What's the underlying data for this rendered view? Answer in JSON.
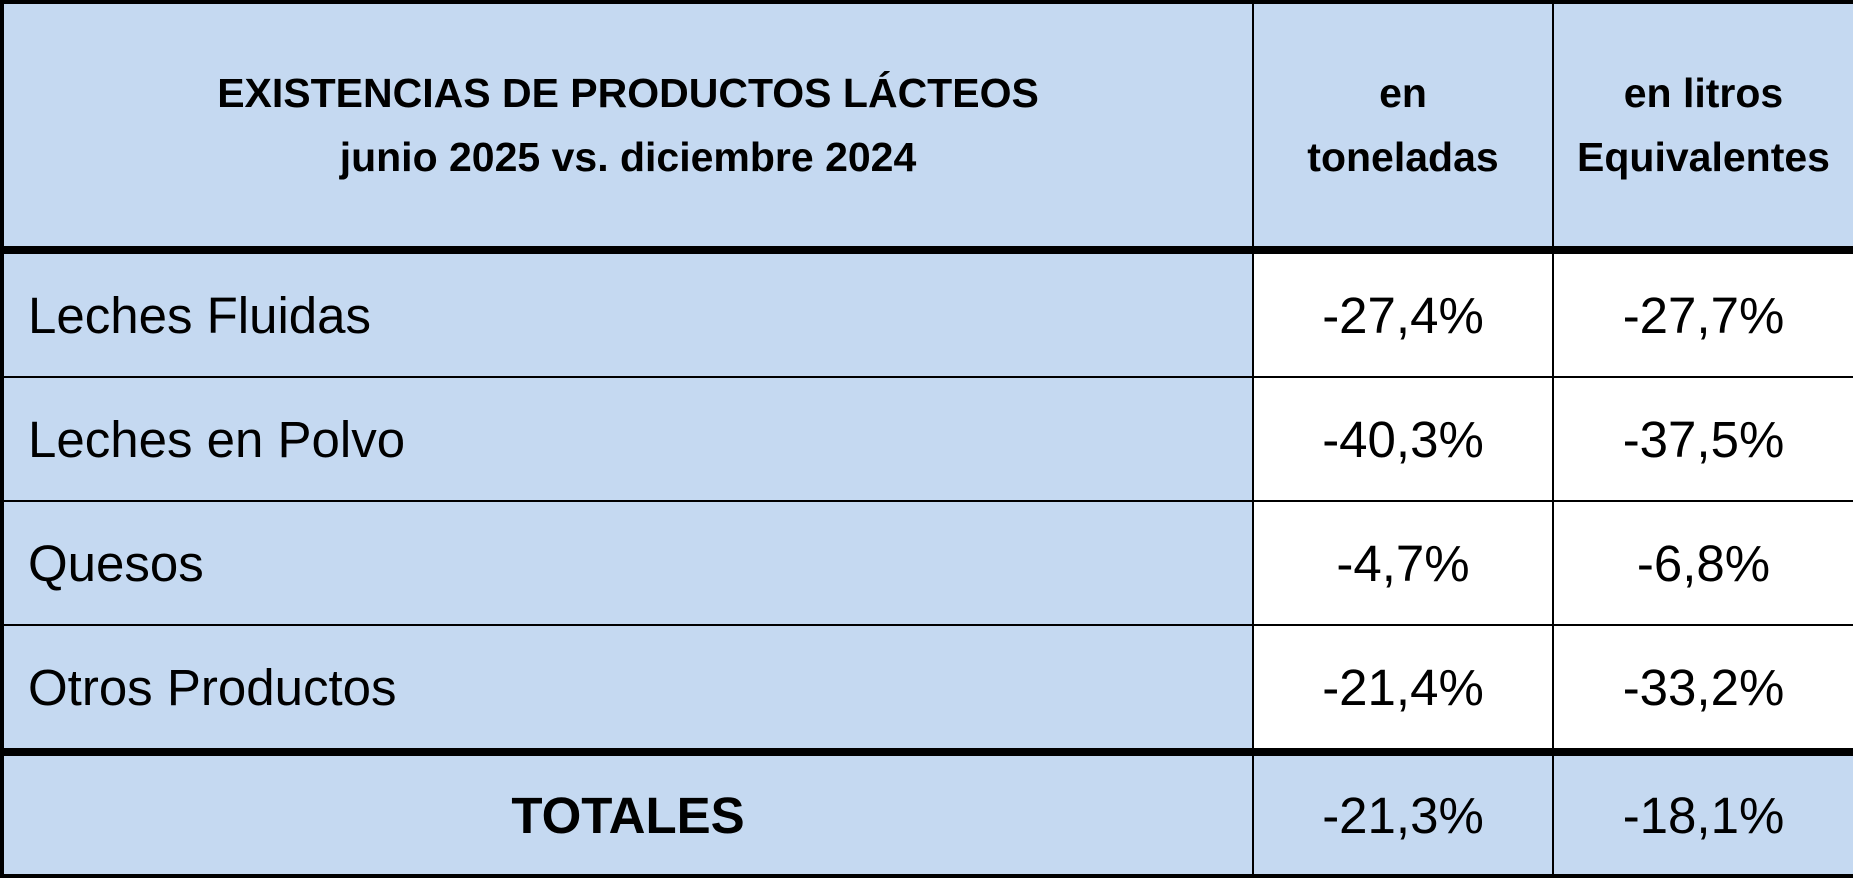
{
  "table": {
    "header": {
      "title_line1": "EXISTENCIAS DE PRODUCTOS LÁCTEOS",
      "title_line2": "junio 2025 vs. diciembre 2024",
      "col_ton_line1": "en",
      "col_ton_line2": "toneladas",
      "col_lit_line1": "en litros",
      "col_lit_line2": "Equivalentes"
    },
    "rows": [
      {
        "label": "Leches Fluidas",
        "toneladas": "-27,4%",
        "litros": "-27,7%"
      },
      {
        "label": "Leches en Polvo",
        "toneladas": "-40,3%",
        "litros": "-37,5%"
      },
      {
        "label": "Quesos",
        "toneladas": "-4,7%",
        "litros": "-6,8%"
      },
      {
        "label": "Otros Productos",
        "toneladas": "-21,4%",
        "litros": "-33,2%"
      }
    ],
    "total": {
      "label": "TOTALES",
      "toneladas": "-21,3%",
      "litros": "-18,1%"
    },
    "colors": {
      "header_fill": "#c5d9f1",
      "value_fill": "#ffffff",
      "border": "#000000"
    }
  }
}
